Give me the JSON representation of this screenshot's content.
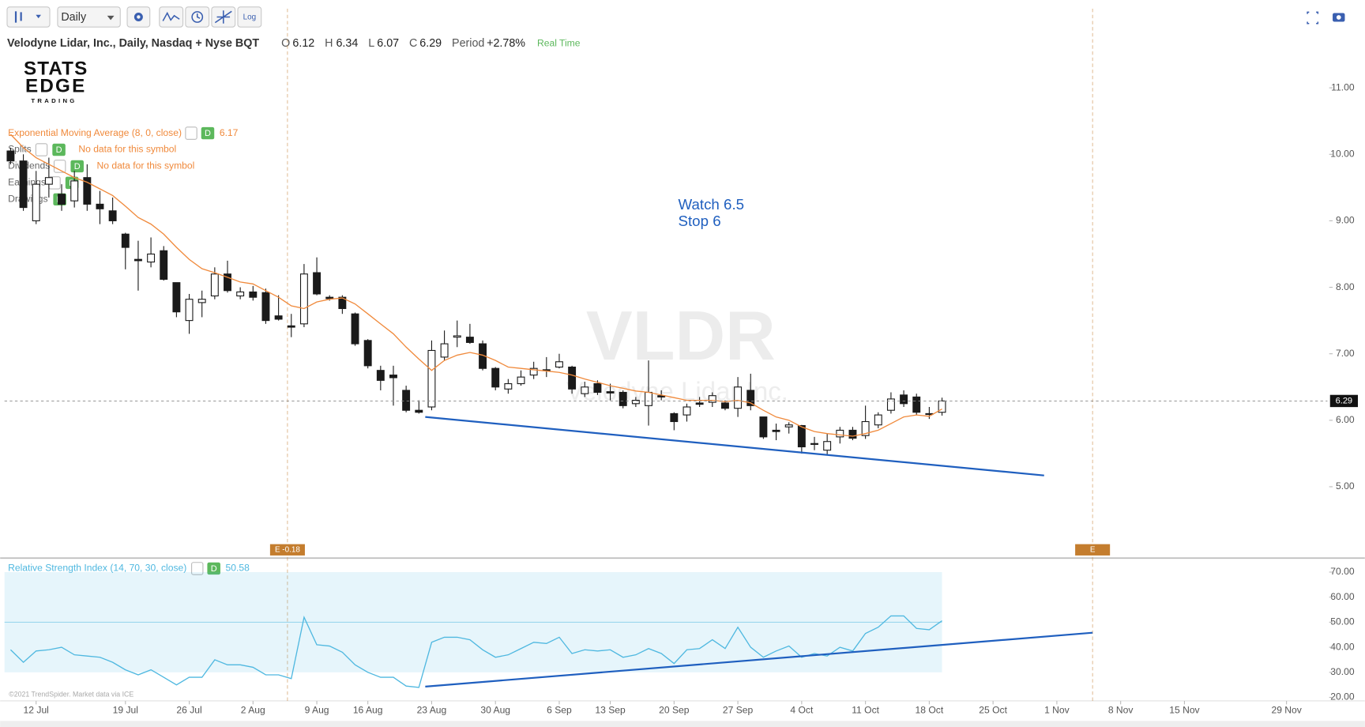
{
  "toolbar": {
    "interval": "Daily",
    "scale": "Log"
  },
  "logo": {
    "line1": "STATS",
    "line2": "EDGE",
    "line3": "TRADING"
  },
  "footer": "©2021 TrendSpider. Market data via ICE",
  "chart_data": [
    {
      "type": "candlestick",
      "title": "Velodyne Lidar, Inc., Daily, Nasdaq + Nyse BQT",
      "quote_labels": [
        "O",
        "H",
        "L",
        "C"
      ],
      "period_label": "Period",
      "period_change": "+2.78%",
      "feed": "Real Time",
      "watermark": "VLDR",
      "watermark_name": "Velodyne Lidar Inc.",
      "ylim": [
        3.94,
        12.19
      ],
      "yticks": [
        {
          "value": 5,
          "label": "5.00"
        },
        {
          "value": 6,
          "label": "6.00"
        },
        {
          "value": 7,
          "label": "7.00"
        },
        {
          "value": 8,
          "label": "8.00"
        },
        {
          "value": 9,
          "label": "9.00"
        },
        {
          "value": 10,
          "label": "10.00"
        },
        {
          "value": 11,
          "label": "11.00"
        }
      ],
      "grid": false,
      "last_price_line": true,
      "up_color": "#ffffff",
      "down_color": "#1a1a1a",
      "open": [
        10.05,
        9.9,
        9.0,
        9.55,
        9.4,
        9.3,
        9.65,
        9.25,
        9.15,
        8.8,
        8.42,
        8.38,
        8.55,
        8.07,
        7.5,
        7.77,
        7.87,
        8.2,
        7.87,
        7.93,
        7.92,
        7.57,
        7.42,
        7.45,
        8.22,
        7.85,
        7.85,
        7.6,
        7.2,
        6.75,
        6.68,
        6.45,
        6.15,
        6.2,
        6.95,
        7.25,
        7.25,
        7.15,
        6.78,
        6.47,
        6.55,
        6.68,
        6.75,
        6.8,
        6.8,
        6.4,
        6.55,
        6.43,
        6.42,
        6.25,
        6.22,
        6.37,
        6.1,
        6.08,
        6.26,
        6.27,
        6.26,
        6.18,
        6.45,
        6.05,
        5.85,
        5.9,
        5.92,
        5.65,
        5.55,
        5.75,
        5.85,
        5.77,
        5.93,
        6.15,
        6.38,
        6.35,
        6.1,
        6.12,
        null,
        null,
        null,
        null,
        null,
        null,
        null,
        null,
        null,
        null,
        null,
        null,
        null,
        null,
        null,
        null,
        null,
        null,
        null,
        null,
        null,
        null,
        null,
        null,
        null,
        null,
        null
      ],
      "high": [
        10.1,
        10.0,
        9.75,
        9.95,
        9.55,
        9.75,
        9.85,
        9.45,
        9.35,
        8.82,
        8.7,
        8.75,
        8.62,
        8.07,
        7.9,
        7.95,
        8.3,
        8.4,
        8.0,
        8.02,
        7.98,
        7.88,
        7.6,
        8.35,
        8.45,
        7.88,
        7.88,
        7.62,
        7.22,
        6.82,
        6.82,
        6.52,
        6.3,
        7.2,
        7.35,
        7.5,
        7.45,
        7.2,
        6.8,
        6.62,
        6.75,
        6.88,
        6.95,
        7.0,
        6.82,
        6.58,
        6.6,
        6.55,
        6.45,
        6.35,
        6.9,
        6.45,
        6.12,
        6.25,
        6.35,
        6.42,
        6.3,
        6.65,
        6.7,
        6.05,
        5.95,
        5.97,
        5.93,
        5.75,
        5.8,
        5.9,
        5.9,
        6.22,
        6.12,
        6.42,
        6.45,
        6.4,
        6.2,
        6.34,
        null,
        null,
        null,
        null,
        null,
        null,
        null,
        null,
        null,
        null,
        null,
        null,
        null,
        null,
        null,
        null,
        null,
        null,
        null,
        null,
        null,
        null,
        null,
        null,
        null,
        null,
        null
      ],
      "low": [
        9.85,
        9.15,
        8.95,
        9.35,
        9.15,
        9.2,
        9.15,
        8.95,
        8.95,
        8.27,
        7.95,
        8.3,
        8.1,
        7.55,
        7.3,
        7.55,
        7.82,
        7.92,
        7.82,
        7.8,
        7.45,
        7.5,
        7.25,
        7.4,
        7.88,
        7.8,
        7.6,
        7.12,
        6.78,
        6.45,
        6.22,
        6.12,
        6.1,
        6.15,
        6.9,
        7.1,
        7.15,
        6.75,
        6.45,
        6.4,
        6.52,
        6.62,
        6.65,
        6.78,
        6.4,
        6.35,
        6.38,
        6.3,
        6.18,
        6.2,
        5.92,
        6.3,
        5.85,
        5.98,
        6.2,
        6.2,
        6.15,
        6.05,
        6.15,
        5.72,
        5.7,
        5.8,
        5.5,
        5.55,
        5.48,
        5.65,
        5.7,
        5.72,
        5.88,
        6.1,
        6.2,
        6.08,
        6.02,
        6.07,
        null,
        null,
        null,
        null,
        null,
        null,
        null,
        null,
        null,
        null,
        null,
        null,
        null,
        null,
        null,
        null,
        null,
        null,
        null,
        null,
        null,
        null,
        null,
        null,
        null,
        null,
        null
      ],
      "close": [
        9.9,
        9.2,
        9.55,
        9.65,
        9.25,
        9.6,
        9.25,
        9.18,
        9.0,
        8.6,
        8.4,
        8.5,
        8.12,
        7.63,
        7.82,
        7.82,
        8.2,
        7.95,
        7.93,
        7.85,
        7.5,
        7.52,
        7.4,
        8.2,
        7.9,
        7.83,
        7.68,
        7.15,
        6.82,
        6.6,
        6.64,
        6.15,
        6.12,
        7.05,
        7.15,
        7.27,
        7.17,
        6.78,
        6.5,
        6.55,
        6.65,
        6.78,
        6.76,
        6.88,
        6.47,
        6.5,
        6.42,
        6.41,
        6.22,
        6.3,
        6.42,
        6.35,
        5.98,
        6.2,
        6.24,
        6.37,
        6.18,
        6.5,
        6.22,
        5.75,
        5.83,
        5.93,
        5.6,
        5.64,
        5.68,
        5.85,
        5.73,
        5.98,
        6.08,
        6.32,
        6.25,
        6.12,
        6.09,
        6.29,
        null,
        null,
        null,
        null,
        null,
        null,
        null,
        null,
        null,
        null,
        null,
        null,
        null,
        null,
        null,
        null,
        null,
        null,
        null,
        null,
        null,
        null,
        null,
        null,
        null,
        null,
        null
      ],
      "ema": {
        "name": "Exponential Moving Average (8, 0, close)",
        "badge": "D",
        "color": "#f08a3c",
        "values": [
          10.3,
          10.1,
          9.95,
          9.85,
          9.75,
          9.65,
          9.58,
          9.48,
          9.38,
          9.22,
          9.05,
          8.95,
          8.8,
          8.6,
          8.42,
          8.28,
          8.22,
          8.15,
          8.08,
          8.05,
          7.95,
          7.85,
          7.72,
          7.68,
          7.78,
          7.82,
          7.84,
          7.75,
          7.6,
          7.45,
          7.3,
          7.1,
          6.92,
          6.75,
          6.9,
          6.98,
          7.02,
          6.98,
          6.9,
          6.8,
          6.78,
          6.76,
          6.74,
          6.72,
          6.68,
          6.62,
          6.57,
          6.52,
          6.48,
          6.44,
          6.42,
          6.38,
          6.34,
          6.3,
          6.3,
          6.3,
          6.28,
          6.3,
          6.26,
          6.15,
          6.05,
          6.0,
          5.9,
          5.83,
          5.8,
          5.78,
          5.76,
          5.8,
          5.85,
          5.95,
          6.05,
          6.08,
          6.06,
          6.17,
          null,
          null,
          null,
          null,
          null,
          null,
          null,
          null,
          null,
          null,
          null,
          null,
          null,
          null,
          null,
          null,
          null,
          null,
          null,
          null,
          null,
          null,
          null,
          null,
          null,
          null,
          null
        ]
      },
      "overlays": [
        {
          "name": "Splits",
          "badge": "D",
          "note": "No data for this symbol"
        },
        {
          "name": "Dividends",
          "badge": "D",
          "note": "No data for this symbol"
        },
        {
          "name": "Earnings",
          "badge": "D"
        },
        {
          "name": "Drawings",
          "badge": "D"
        }
      ],
      "annotations": [
        "Watch 6.5",
        "Stop 6"
      ],
      "annotation_color": "#1f5fbf",
      "trendline": {
        "x": [
          32.5,
          81
        ],
        "y": [
          6.05,
          5.17
        ],
        "color": "#1f5fbf"
      },
      "earnings": [
        {
          "index": 21.7,
          "label": "E -0.18"
        },
        {
          "index": 84.8,
          "label": "E"
        }
      ],
      "earnings_color": "#c47d2e"
    },
    {
      "type": "line",
      "title": "Relative Strength Index (14, 70, 30, close)",
      "badge": "D",
      "color": "#4fb8e0",
      "categories": [
        null,
        null,
        "12 Jul",
        null,
        null,
        null,
        null,
        null,
        null,
        "19 Jul",
        null,
        null,
        null,
        null,
        "26 Jul",
        null,
        null,
        null,
        null,
        "2 Aug",
        null,
        null,
        null,
        null,
        "9 Aug",
        null,
        null,
        null,
        "16 Aug",
        null,
        null,
        null,
        null,
        "23 Aug",
        null,
        null,
        null,
        null,
        "30 Aug",
        null,
        null,
        null,
        null,
        "6 Sep",
        null,
        null,
        null,
        "13 Sep",
        null,
        null,
        null,
        null,
        "20 Sep",
        null,
        null,
        null,
        null,
        "27 Sep",
        null,
        null,
        null,
        null,
        "4 Oct",
        null,
        null,
        null,
        null,
        "11 Oct",
        null,
        null,
        null,
        null,
        "18 Oct",
        null,
        null,
        null,
        null,
        "25 Oct",
        null,
        null,
        null,
        null,
        "1 Nov",
        null,
        null,
        null,
        null,
        "8 Nov",
        null,
        null,
        null,
        null,
        "15 Nov",
        null,
        null,
        null,
        null,
        null,
        null,
        null,
        "29 Nov"
      ],
      "values": [
        39,
        34,
        38.5,
        39,
        40,
        37,
        36.5,
        36,
        34,
        31,
        29,
        31,
        28,
        25,
        28,
        28,
        35,
        33,
        33,
        32,
        29,
        29,
        27.5,
        52,
        41,
        40.5,
        38,
        33,
        30,
        28,
        28,
        24.5,
        24,
        42,
        44,
        44,
        43,
        39,
        36,
        37,
        39.5,
        42,
        41.5,
        44,
        37.5,
        39,
        38.5,
        39,
        36,
        37,
        39.5,
        37.5,
        33.5,
        39,
        39.5,
        43,
        39.5,
        48,
        40,
        36,
        38.5,
        40.5,
        36,
        37.5,
        36.5,
        40,
        38.5,
        45.5,
        48,
        52.5,
        52.5,
        47.5,
        47,
        50.58,
        null,
        null,
        null,
        null,
        null,
        null,
        null,
        null,
        null,
        null,
        null,
        null,
        null,
        null,
        null,
        null,
        null,
        null,
        null,
        null,
        null,
        null,
        null,
        null,
        null,
        null,
        null
      ],
      "ylim": [
        18.6,
        74.2
      ],
      "yticks": [
        {
          "value": 20,
          "label": "20.00"
        },
        {
          "value": 30,
          "label": "30.00"
        },
        {
          "value": 40,
          "label": "40.00"
        },
        {
          "value": 50,
          "label": "50.00"
        },
        {
          "value": 60,
          "label": "60.00"
        },
        {
          "value": 70,
          "label": "70.00"
        }
      ],
      "band": [
        30,
        70
      ],
      "midline": 50,
      "trendline": {
        "x": [
          32.5,
          84.8
        ],
        "y": [
          24.3,
          45.8
        ],
        "color": "#1f5fbf"
      }
    }
  ]
}
